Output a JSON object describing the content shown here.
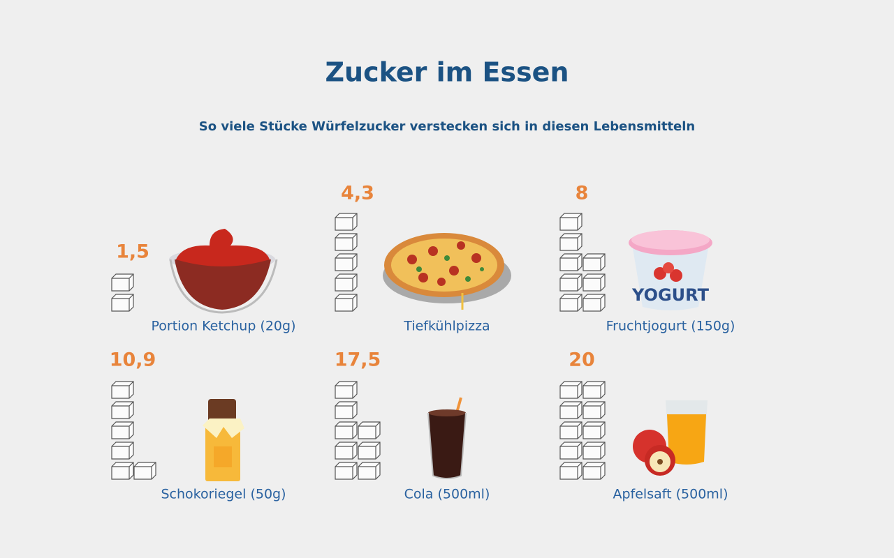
{
  "header": {
    "title": "Zucker im Essen",
    "subtitle": "So viele Stücke Würfelzucker verstecken sich in diesen Lebensmitteln"
  },
  "items": [
    {
      "value": "1,5",
      "label": "Portion Ketchup (20g)"
    },
    {
      "value": "4,3",
      "label": "Tiefkühlpizza"
    },
    {
      "value": "8",
      "label": "Fruchtjogurt (150g)"
    },
    {
      "value": "10,9",
      "label": "Schokoriegel (50g)"
    },
    {
      "value": "17,5",
      "label": "Cola (500ml)"
    },
    {
      "value": "20",
      "label": "Apfelsaft (500ml)"
    }
  ]
}
